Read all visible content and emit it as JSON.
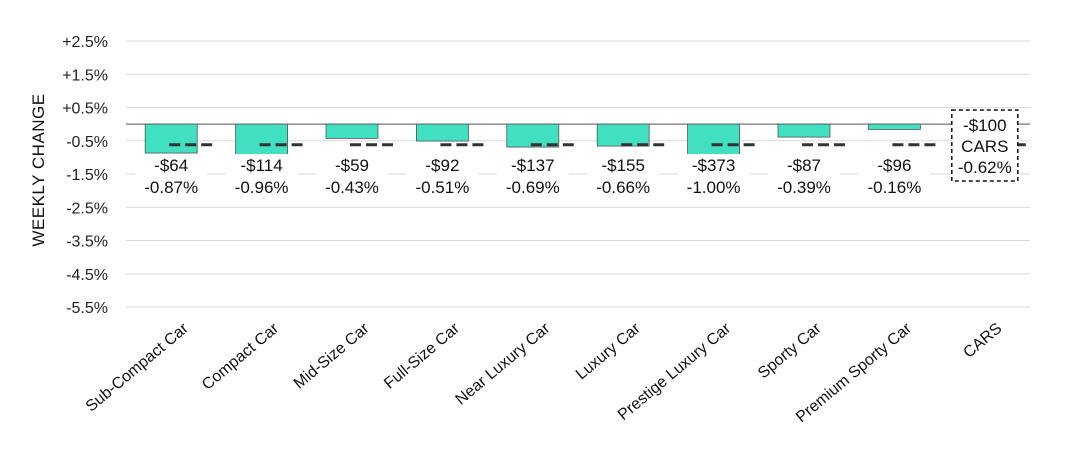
{
  "chart_data": {
    "type": "bar",
    "ylabel": "WEEKLY CHANGE",
    "y_ticks": [
      "+2.5%",
      "+1.5%",
      "+0.5%",
      "-0.5%",
      "-1.5%",
      "-2.5%",
      "-3.5%",
      "-4.5%",
      "-5.5%"
    ],
    "ylim": [
      -5.5,
      2.5
    ],
    "grid": true,
    "categories": [
      "Sub-Compact Car",
      "Compact Car",
      "Mid-Size Car",
      "Full-Size Car",
      "Near Luxury Car",
      "Luxury Car",
      "Prestige Luxury Car",
      "Sporty Car",
      "Premium Sporty Car",
      "CARS"
    ],
    "values": [
      -0.87,
      -0.96,
      -0.43,
      -0.51,
      -0.69,
      -0.66,
      -1.0,
      -0.39,
      -0.16,
      null
    ],
    "dollar_labels": [
      "-$64",
      "-$114",
      "-$59",
      "-$92",
      "-$137",
      "-$155",
      "-$373",
      "-$87",
      "-$96",
      "-$100"
    ],
    "percent_labels": [
      "-0.87%",
      "-0.96%",
      "-0.43%",
      "-0.51%",
      "-0.69%",
      "-0.66%",
      "-1.00%",
      "-0.39%",
      "-0.16%",
      "-0.62%"
    ],
    "summary_label": "CARS",
    "average_line": -0.62,
    "bar_color": "#40E0C0",
    "bar_stroke": "#555555",
    "average_line_color": "#333333"
  }
}
